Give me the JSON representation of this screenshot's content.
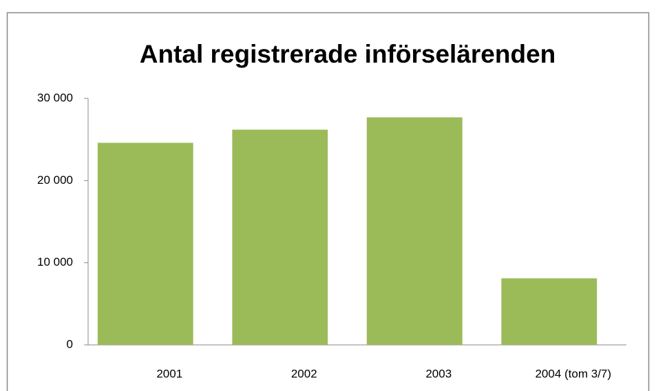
{
  "chart_data": {
    "type": "bar",
    "title": "Antal registrerade införselärenden",
    "categories": [
      "2001",
      "2002",
      "2003",
      "2004 (tom 3/7)"
    ],
    "values": [
      24600,
      26200,
      27700,
      8100
    ],
    "color": "#9bbb59",
    "ylim": [
      0,
      30000
    ],
    "yticks": [
      0,
      {
        "value": 10000,
        "label": "10 000"
      },
      {
        "value": 20000,
        "label": "20 000"
      },
      {
        "value": 30000,
        "label": "30 000"
      }
    ],
    "grid": false
  }
}
